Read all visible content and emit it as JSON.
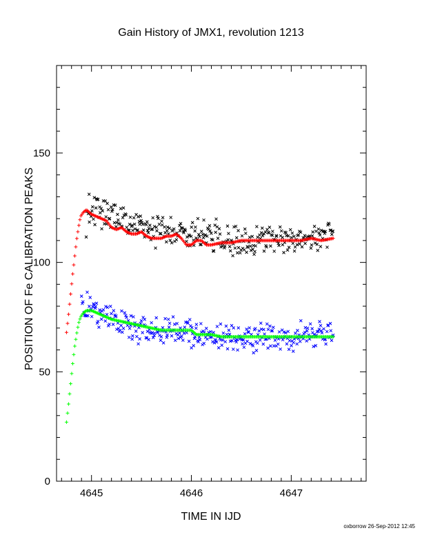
{
  "chart_data": {
    "type": "scatter",
    "title": "Gain History of JMX1, revolution 1213",
    "xlabel": "TIME IN IJD",
    "ylabel": "POSITION OF Fe CALIBRATION PEAKS",
    "xlim": [
      4644.65,
      4647.75
    ],
    "ylim": [
      0,
      190
    ],
    "x_ticks": [
      {
        "value": 4645,
        "label": "4645"
      },
      {
        "value": 4646,
        "label": "4646"
      },
      {
        "value": 4647,
        "label": "4647"
      }
    ],
    "y_ticks": [
      {
        "value": 0,
        "label": "0"
      },
      {
        "value": 50,
        "label": "50"
      },
      {
        "value": 100,
        "label": "100"
      },
      {
        "value": 150,
        "label": "150"
      }
    ],
    "grid": false,
    "legend": "none",
    "series": [
      {
        "color": "#000000",
        "marker": "x",
        "x_range": [
          4644.95,
          4647.42
        ],
        "scatter": 3.5,
        "trend": [
          [
            4644.95,
            126
          ],
          [
            4645.1,
            123
          ],
          [
            4645.3,
            120
          ],
          [
            4645.5,
            117
          ],
          [
            4645.7,
            114
          ],
          [
            4646.0,
            112
          ],
          [
            4646.3,
            111
          ],
          [
            4646.6,
            110
          ],
          [
            4647.0,
            111
          ],
          [
            4647.42,
            112
          ]
        ]
      },
      {
        "color": "#ff0000",
        "marker": "+",
        "x": [
          4644.75,
          4644.77,
          4644.79,
          4644.81,
          4644.83,
          4644.85,
          4644.87,
          4644.89,
          4644.92,
          4644.95,
          4645.0,
          4645.05,
          4645.1,
          4645.15,
          4645.2,
          4645.25,
          4645.3,
          4645.35,
          4645.4,
          4645.45,
          4645.5,
          4645.55,
          4645.6,
          4645.65,
          4645.7,
          4645.75,
          4645.8,
          4645.85,
          4645.9,
          4645.95,
          4646.0,
          4646.05,
          4646.1,
          4646.15,
          4646.2,
          4646.3,
          4646.4,
          4646.5,
          4646.6,
          4646.7,
          4646.8,
          4646.9,
          4647.0,
          4647.1,
          4647.2,
          4647.3,
          4647.42
        ],
        "y": [
          68,
          76,
          85,
          94,
          102,
          110,
          116,
          121,
          123,
          124,
          122,
          121,
          120,
          119,
          116,
          115,
          116,
          114,
          113,
          113,
          114,
          112,
          111,
          111,
          111,
          112,
          112,
          113,
          111,
          108,
          108,
          110,
          110,
          108,
          108,
          109,
          109,
          110,
          110,
          110,
          110,
          110,
          110,
          110,
          111,
          110,
          111
        ]
      },
      {
        "color": "#0000ff",
        "marker": "x",
        "x_range": [
          4644.9,
          4647.42
        ],
        "scatter": 3,
        "trend": [
          [
            4644.9,
            80
          ],
          [
            4645.1,
            77
          ],
          [
            4645.3,
            72
          ],
          [
            4645.5,
            70
          ],
          [
            4645.7,
            69
          ],
          [
            4646.0,
            68
          ],
          [
            4646.2,
            66
          ],
          [
            4646.5,
            65
          ],
          [
            4646.8,
            66
          ],
          [
            4647.0,
            66
          ],
          [
            4647.42,
            67
          ]
        ]
      },
      {
        "color": "#00ff00",
        "marker": "+",
        "x": [
          4644.75,
          4644.77,
          4644.79,
          4644.81,
          4644.83,
          4644.85,
          4644.87,
          4644.89,
          4644.92,
          4644.95,
          4645.0,
          4645.05,
          4645.1,
          4645.15,
          4645.2,
          4645.3,
          4645.4,
          4645.5,
          4645.6,
          4645.7,
          4645.8,
          4645.9,
          4646.0,
          4646.05,
          4646.1,
          4646.15,
          4646.2,
          4646.3,
          4646.4,
          4646.5,
          4646.6,
          4646.7,
          4646.8,
          4646.9,
          4647.0,
          4647.1,
          4647.2,
          4647.3,
          4647.42
        ],
        "y": [
          27,
          35,
          44,
          53,
          61,
          67,
          72,
          75,
          77,
          78,
          78,
          77,
          76,
          75,
          74,
          73,
          72,
          71,
          70,
          69,
          69,
          69,
          69,
          67,
          67,
          67,
          67,
          66,
          66,
          66,
          66,
          66,
          66,
          66,
          66,
          66,
          66,
          66,
          66
        ]
      }
    ]
  },
  "footer": {
    "credit": "oxborrow 26-Sep-2012 12:45"
  }
}
